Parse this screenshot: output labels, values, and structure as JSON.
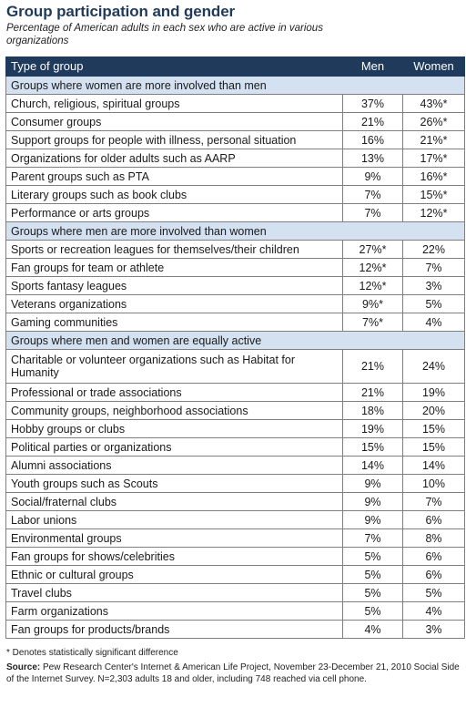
{
  "title": "Group participation and gender",
  "subtitle": "Percentage of American adults in each sex who are active in various organizations",
  "chart_data": {
    "type": "table",
    "columns": [
      "Type of group",
      "Men",
      "Women"
    ],
    "sections": [
      {
        "heading": "Groups where women are more involved than men",
        "rows": [
          {
            "group": "Church, religious, spiritual groups",
            "men": "37%",
            "women": "43%*"
          },
          {
            "group": "Consumer groups",
            "men": "21%",
            "women": "26%*"
          },
          {
            "group": "Support groups for people with illness, personal situation",
            "men": "16%",
            "women": "21%*"
          },
          {
            "group": "Organizations for older adults such as AARP",
            "men": "13%",
            "women": "17%*"
          },
          {
            "group": "Parent groups such as PTA",
            "men": "9%",
            "women": "16%*"
          },
          {
            "group": "Literary groups such as book clubs",
            "men": "7%",
            "women": "15%*"
          },
          {
            "group": "Performance or arts groups",
            "men": "7%",
            "women": "12%*"
          }
        ]
      },
      {
        "heading": "Groups where men are more involved than women",
        "rows": [
          {
            "group": "Sports or recreation leagues for themselves/their children",
            "men": "27%*",
            "women": "22%"
          },
          {
            "group": "Fan groups for team or athlete",
            "men": "12%*",
            "women": "7%"
          },
          {
            "group": "Sports fantasy leagues",
            "men": "12%*",
            "women": "3%"
          },
          {
            "group": "Veterans organizations",
            "men": "9%*",
            "women": "5%"
          },
          {
            "group": "Gaming communities",
            "men": "7%*",
            "women": "4%"
          }
        ]
      },
      {
        "heading": "Groups where men and women are equally active",
        "rows": [
          {
            "group": "Charitable or volunteer organizations such as Habitat for Humanity",
            "men": "21%",
            "women": "24%"
          },
          {
            "group": "Professional or trade associations",
            "men": "21%",
            "women": "19%"
          },
          {
            "group": "Community groups, neighborhood associations",
            "men": "18%",
            "women": "20%"
          },
          {
            "group": "Hobby groups or clubs",
            "men": "19%",
            "women": "15%"
          },
          {
            "group": "Political parties or organizations",
            "men": "15%",
            "women": "15%"
          },
          {
            "group": "Alumni associations",
            "men": "14%",
            "women": "14%"
          },
          {
            "group": "Youth groups such as Scouts",
            "men": "9%",
            "women": "10%"
          },
          {
            "group": "Social/fraternal clubs",
            "men": "9%",
            "women": "7%"
          },
          {
            "group": "Labor unions",
            "men": "9%",
            "women": "6%"
          },
          {
            "group": "Environmental groups",
            "men": "7%",
            "women": "8%"
          },
          {
            "group": "Fan groups for shows/celebrities",
            "men": "5%",
            "women": "6%"
          },
          {
            "group": "Ethnic or cultural groups",
            "men": "5%",
            "women": "6%"
          },
          {
            "group": "Travel clubs",
            "men": "5%",
            "women": "5%"
          },
          {
            "group": "Farm organizations",
            "men": "5%",
            "women": "4%"
          },
          {
            "group": "Fan groups for products/brands",
            "men": "4%",
            "women": "3%"
          }
        ]
      }
    ]
  },
  "footnote": "* Denotes statistically significant difference",
  "source_label": "Source:",
  "source_text": "Pew Research Center's Internet & American Life Project, November 23-December 21, 2010 Social Side of the Internet Survey. N=2,303 adults 18 and older, including 748 reached via cell phone.",
  "colors": {
    "header_bg": "#1f3a5a",
    "section_bg": "#d3e1f0",
    "title": "#1f3a5a"
  }
}
